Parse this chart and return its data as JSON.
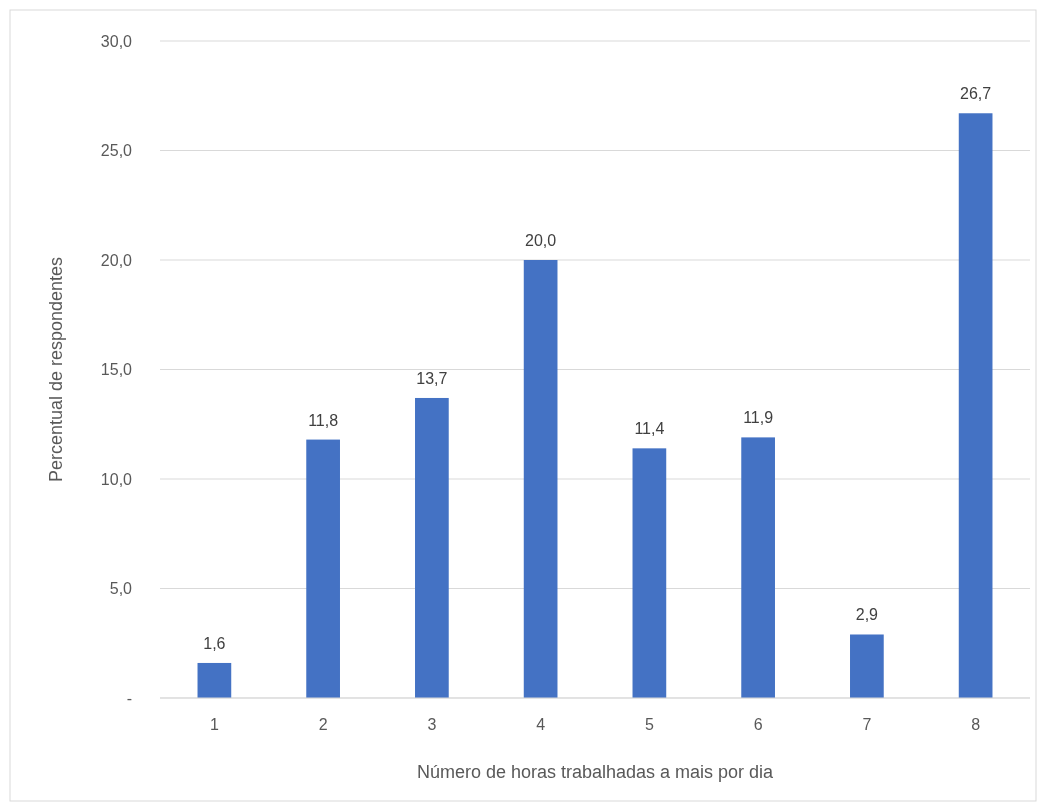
{
  "chart_data": {
    "type": "bar",
    "xlabel": "Número de horas trabalhadas a mais por dia",
    "ylabel": "Percentual de respondentes",
    "categories": [
      "1",
      "2",
      "3",
      "4",
      "5",
      "6",
      "7",
      "8"
    ],
    "values": [
      1.6,
      11.8,
      13.7,
      20.0,
      11.4,
      11.9,
      2.9,
      26.7
    ],
    "value_labels": [
      "1,6",
      "11,8",
      "13,7",
      "20,0",
      "11,4",
      "11,9",
      "2,9",
      "26,7"
    ],
    "color": "#4472c4",
    "ylim": [
      0,
      30
    ],
    "yticks": [
      {
        "value": 0,
        "label": "-"
      },
      {
        "value": 5,
        "label": "5,0"
      },
      {
        "value": 10,
        "label": "10,0"
      },
      {
        "value": 15,
        "label": "15,0"
      },
      {
        "value": 20,
        "label": "20,0"
      },
      {
        "value": 25,
        "label": "25,0"
      },
      {
        "value": 30,
        "label": "30,0"
      }
    ],
    "grid": "y"
  }
}
